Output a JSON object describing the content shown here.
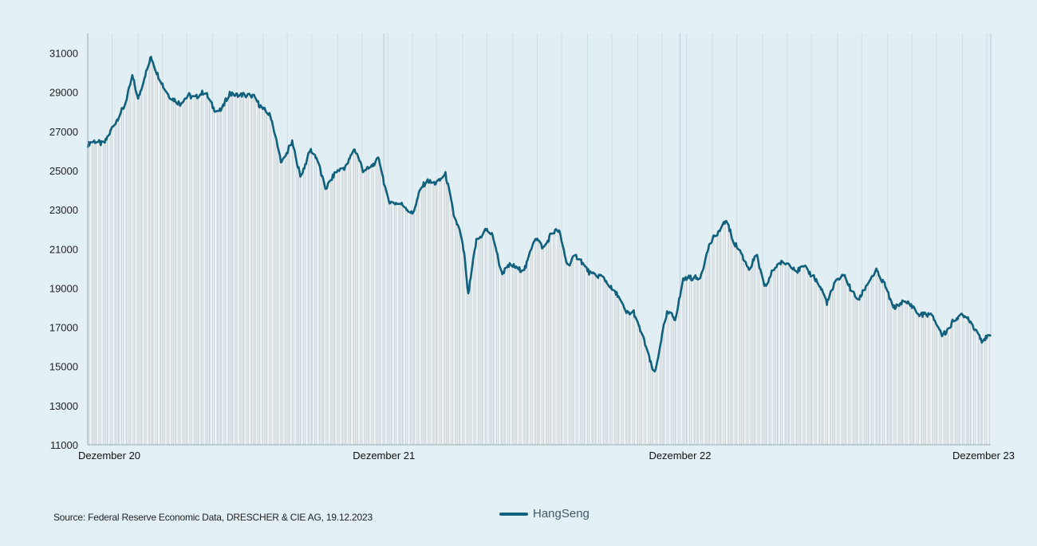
{
  "chart_data": {
    "type": "line",
    "title": "",
    "xlabel": "",
    "ylabel": "",
    "ylim": [
      11000,
      32000
    ],
    "y_ticks": [
      11000,
      13000,
      15000,
      17000,
      19000,
      21000,
      23000,
      25000,
      27000,
      29000,
      31000
    ],
    "x_tick_labels": [
      "Dezember 20",
      "Dezember 21",
      "Dezember 22",
      "Dezember 23"
    ],
    "x_range": [
      "2020-12-01",
      "2023-12-19"
    ],
    "grid": true,
    "legend_position": "bottom-center",
    "series": [
      {
        "name": "HangSeng",
        "color": "#11607d",
        "points": [
          [
            "2020-12-01",
            26300
          ],
          [
            "2020-12-10",
            26400
          ],
          [
            "2020-12-21",
            26500
          ],
          [
            "2021-01-05",
            27400
          ],
          [
            "2021-01-15",
            28400
          ],
          [
            "2021-01-25",
            29800
          ],
          [
            "2021-02-01",
            28500
          ],
          [
            "2021-02-10",
            30000
          ],
          [
            "2021-02-17",
            30900
          ],
          [
            "2021-02-25",
            29800
          ],
          [
            "2021-03-05",
            29200
          ],
          [
            "2021-03-15",
            28800
          ],
          [
            "2021-03-25",
            28300
          ],
          [
            "2021-04-05",
            28900
          ],
          [
            "2021-04-15",
            28800
          ],
          [
            "2021-04-25",
            28900
          ],
          [
            "2021-05-05",
            28300
          ],
          [
            "2021-05-15",
            28000
          ],
          [
            "2021-05-25",
            28900
          ],
          [
            "2021-06-05",
            29000
          ],
          [
            "2021-06-15",
            28700
          ],
          [
            "2021-06-25",
            28800
          ],
          [
            "2021-07-05",
            28200
          ],
          [
            "2021-07-15",
            27600
          ],
          [
            "2021-07-28",
            25500
          ],
          [
            "2021-08-10",
            26300
          ],
          [
            "2021-08-20",
            24800
          ],
          [
            "2021-09-01",
            26000
          ],
          [
            "2021-09-10",
            25500
          ],
          [
            "2021-09-20",
            24200
          ],
          [
            "2021-10-01",
            24700
          ],
          [
            "2021-10-15",
            25300
          ],
          [
            "2021-10-25",
            26100
          ],
          [
            "2021-11-05",
            25000
          ],
          [
            "2021-11-15",
            25300
          ],
          [
            "2021-11-25",
            25500
          ],
          [
            "2021-12-05",
            23600
          ],
          [
            "2021-12-15",
            23400
          ],
          [
            "2021-12-25",
            23100
          ],
          [
            "2022-01-05",
            22900
          ],
          [
            "2022-01-15",
            24000
          ],
          [
            "2022-01-25",
            24400
          ],
          [
            "2022-02-05",
            24500
          ],
          [
            "2022-02-15",
            24700
          ],
          [
            "2022-02-25",
            22800
          ],
          [
            "2022-03-05",
            22000
          ],
          [
            "2022-03-10",
            20700
          ],
          [
            "2022-03-15",
            18500
          ],
          [
            "2022-03-25",
            21500
          ],
          [
            "2022-04-05",
            22000
          ],
          [
            "2022-04-15",
            21500
          ],
          [
            "2022-04-25",
            19900
          ],
          [
            "2022-05-05",
            20100
          ],
          [
            "2022-05-15",
            19900
          ],
          [
            "2022-05-25",
            20200
          ],
          [
            "2022-06-05",
            21500
          ],
          [
            "2022-06-15",
            21100
          ],
          [
            "2022-06-25",
            21800
          ],
          [
            "2022-07-05",
            21800
          ],
          [
            "2022-07-15",
            20300
          ],
          [
            "2022-07-25",
            20600
          ],
          [
            "2022-08-05",
            20100
          ],
          [
            "2022-08-15",
            19800
          ],
          [
            "2022-08-25",
            19500
          ],
          [
            "2022-09-05",
            19200
          ],
          [
            "2022-09-15",
            18700
          ],
          [
            "2022-09-25",
            17600
          ],
          [
            "2022-10-05",
            17900
          ],
          [
            "2022-10-15",
            16600
          ],
          [
            "2022-10-25",
            15200
          ],
          [
            "2022-10-31",
            14700
          ],
          [
            "2022-11-07",
            16300
          ],
          [
            "2022-11-15",
            17600
          ],
          [
            "2022-11-25",
            17500
          ],
          [
            "2022-12-05",
            19500
          ],
          [
            "2022-12-15",
            19400
          ],
          [
            "2022-12-25",
            19600
          ],
          [
            "2023-01-05",
            21000
          ],
          [
            "2023-01-15",
            21700
          ],
          [
            "2023-01-27",
            22600
          ],
          [
            "2023-02-05",
            21200
          ],
          [
            "2023-02-15",
            20800
          ],
          [
            "2023-02-25",
            20000
          ],
          [
            "2023-03-05",
            20600
          ],
          [
            "2023-03-15",
            19100
          ],
          [
            "2023-03-25",
            19900
          ],
          [
            "2023-04-05",
            20200
          ],
          [
            "2023-04-15",
            20400
          ],
          [
            "2023-04-25",
            19800
          ],
          [
            "2023-05-05",
            20000
          ],
          [
            "2023-05-15",
            19700
          ],
          [
            "2023-05-31",
            18200
          ],
          [
            "2023-06-10",
            19400
          ],
          [
            "2023-06-20",
            19600
          ],
          [
            "2023-06-30",
            18900
          ],
          [
            "2023-07-10",
            18500
          ],
          [
            "2023-07-20",
            19100
          ],
          [
            "2023-07-31",
            20000
          ],
          [
            "2023-08-10",
            19200
          ],
          [
            "2023-08-20",
            17900
          ],
          [
            "2023-08-31",
            18400
          ],
          [
            "2023-09-10",
            18100
          ],
          [
            "2023-09-20",
            17700
          ],
          [
            "2023-09-30",
            17800
          ],
          [
            "2023-10-10",
            17300
          ],
          [
            "2023-10-20",
            16700
          ],
          [
            "2023-10-31",
            17100
          ],
          [
            "2023-11-10",
            17500
          ],
          [
            "2023-11-20",
            17700
          ],
          [
            "2023-11-30",
            16800
          ],
          [
            "2023-12-08",
            16300
          ],
          [
            "2023-12-15",
            16600
          ],
          [
            "2023-12-19",
            16600
          ]
        ]
      }
    ]
  },
  "footer": {
    "source": "Source: Federal Reserve Economic Data, DRESCHER & CIE AG, 19.12.2023"
  }
}
